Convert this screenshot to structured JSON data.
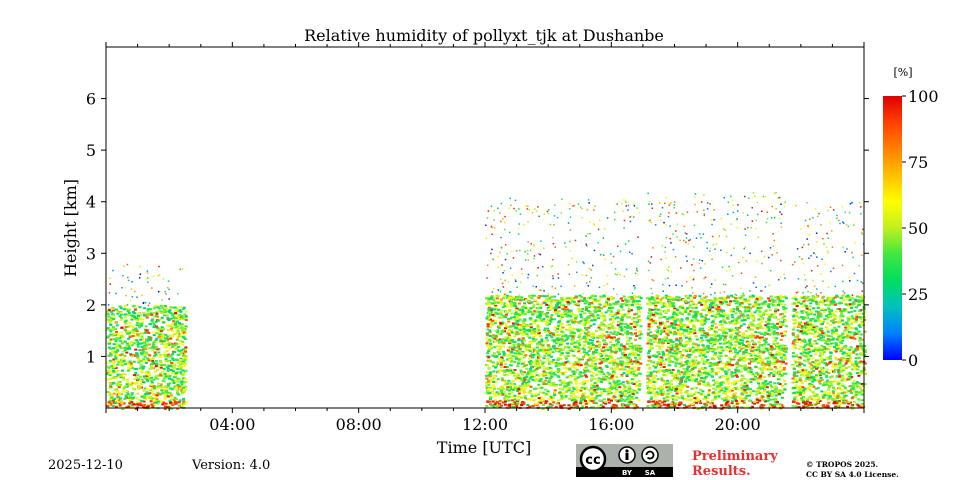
{
  "chart_data": {
    "type": "heatmap",
    "title": "Relative humidity of pollyxt_tjk at Dushanbe",
    "xlabel": "Time [UTC]",
    "ylabel": "Height [km]",
    "xlim_hours": [
      0,
      24
    ],
    "ylim_km": [
      0,
      7
    ],
    "x_ticks": [
      {
        "hour": 4,
        "label": "04:00"
      },
      {
        "hour": 8,
        "label": "08:00"
      },
      {
        "hour": 12,
        "label": "12:00"
      },
      {
        "hour": 16,
        "label": "16:00"
      },
      {
        "hour": 20,
        "label": "20:00"
      }
    ],
    "y_ticks": [
      {
        "km": 1,
        "label": "1"
      },
      {
        "km": 2,
        "label": "2"
      },
      {
        "km": 3,
        "label": "3"
      },
      {
        "km": 4,
        "label": "4"
      },
      {
        "km": 5,
        "label": "5"
      },
      {
        "km": 6,
        "label": "6"
      }
    ],
    "colorbar": {
      "unit": "[%]",
      "min": 0,
      "max": 100,
      "ticks": [
        {
          "value": 0,
          "label": "0"
        },
        {
          "value": 25,
          "label": "25"
        },
        {
          "value": 50,
          "label": "50"
        },
        {
          "value": 75,
          "label": "75"
        },
        {
          "value": 100,
          "label": "100"
        }
      ],
      "colormap": [
        "#0000ff",
        "#0080ff",
        "#00c0c0",
        "#00dd60",
        "#40e840",
        "#c0f020",
        "#ffff00",
        "#ffc000",
        "#ff8000",
        "#ff4000",
        "#e00000"
      ]
    },
    "data_segments": [
      {
        "start_hour": 0.0,
        "end_hour": 2.5,
        "top_km": 2.8,
        "dense_top_km": 2.0
      },
      {
        "start_hour": 12.0,
        "end_hour": 16.9,
        "top_km": 4.1,
        "dense_top_km": 2.2
      },
      {
        "start_hour": 17.1,
        "end_hour": 21.5,
        "top_km": 4.2,
        "dense_top_km": 2.2
      },
      {
        "start_hour": 21.7,
        "end_hour": 24.0,
        "top_km": 4.0,
        "dense_top_km": 2.2
      }
    ]
  },
  "footer": {
    "date": "2025-12-10",
    "version": "Version: 4.0",
    "preliminary_line1": "Preliminary",
    "preliminary_line2": "Results.",
    "copyright_line1": "© TROPOS 2025.",
    "copyright_line2": "CC BY SA 4.0 License.",
    "cc_text": "cc",
    "by_text": "BY",
    "sa_text": "SA"
  }
}
